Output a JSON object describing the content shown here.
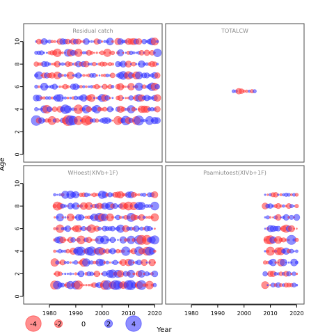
{
  "chart_data": {
    "type": "scatter",
    "subtype": "bubble residual plot",
    "xlabel": "Year",
    "ylabel": "Age",
    "xlim": [
      1971,
      2022
    ],
    "ylim": [
      -0.5,
      11.4
    ],
    "x_ticks": [
      1980,
      1990,
      2000,
      2010,
      2020
    ],
    "y_ticks": [
      0,
      2,
      4,
      6,
      8,
      10
    ],
    "colors": {
      "positive": "#3333ff",
      "negative": "#ff3333",
      "fill_opacity": 0.55
    },
    "legend": {
      "placement": "bottom-left",
      "entries": [
        {
          "label": "-4",
          "value": -4
        },
        {
          "label": "-2",
          "value": -2
        },
        {
          "label": "0",
          "value": 0
        },
        {
          "label": "2",
          "value": 2
        },
        {
          "label": "4",
          "value": 4
        }
      ]
    },
    "panels": [
      {
        "title": "Residual catch",
        "rows": [
          {
            "age": 3,
            "years": [
              1975,
              2004
            ],
            "amp": 2.8
          },
          {
            "age": 4,
            "years": [
              1975,
              2004
            ],
            "amp": 2.3
          },
          {
            "age": 5,
            "years": [
              1975,
              2004
            ],
            "amp": 2.0
          },
          {
            "age": 6,
            "years": [
              1975,
              2004
            ],
            "amp": 1.8
          },
          {
            "age": 7,
            "years": [
              1975,
              2004
            ],
            "amp": 2.0
          },
          {
            "age": 8,
            "years": [
              1975,
              2004
            ],
            "amp": 1.6
          },
          {
            "age": 9,
            "years": [
              1975,
              2004
            ],
            "amp": 2.0
          },
          {
            "age": 10,
            "years": [
              1975,
              2004
            ],
            "amp": 1.7
          },
          {
            "age": 3,
            "years": [
              2006,
              2021
            ],
            "amp": 2.5
          },
          {
            "age": 4,
            "years": [
              2006,
              2021
            ],
            "amp": 2.3
          },
          {
            "age": 5,
            "years": [
              2006,
              2021
            ],
            "amp": 1.8
          },
          {
            "age": 6,
            "years": [
              2006,
              2021
            ],
            "amp": 2.0
          },
          {
            "age": 7,
            "years": [
              2006,
              2021
            ],
            "amp": 2.0
          },
          {
            "age": 8,
            "years": [
              2006,
              2021
            ],
            "amp": 1.7
          },
          {
            "age": 9,
            "years": [
              2006,
              2021
            ],
            "amp": 2.0
          },
          {
            "age": 10,
            "years": [
              2006,
              2021
            ],
            "amp": 1.8
          }
        ]
      },
      {
        "title": "TOTALCW",
        "rows": [
          {
            "age": 5.6,
            "years": [
              1996,
              2004
            ],
            "amp": 1.8
          }
        ]
      },
      {
        "title": "WHoest(XIVb+1F)",
        "rows": [
          {
            "age": 1,
            "years": [
              1982,
              2020
            ],
            "amp": 2.4
          },
          {
            "age": 2,
            "years": [
              1982,
              2020
            ],
            "amp": 2.0
          },
          {
            "age": 3,
            "years": [
              1982,
              2020
            ],
            "amp": 2.0
          },
          {
            "age": 4,
            "years": [
              1982,
              2020
            ],
            "amp": 2.4
          },
          {
            "age": 5,
            "years": [
              1982,
              2020
            ],
            "amp": 2.4
          },
          {
            "age": 6,
            "years": [
              1982,
              2020
            ],
            "amp": 2.2
          },
          {
            "age": 7,
            "years": [
              1982,
              2020
            ],
            "amp": 2.2
          },
          {
            "age": 8,
            "years": [
              1982,
              2020
            ],
            "amp": 2.2
          },
          {
            "age": 9,
            "years": [
              1982,
              2020
            ],
            "amp": 2.0
          }
        ]
      },
      {
        "title": "Paamiutoest(XIVb+1F)",
        "rows": [
          {
            "age": 1,
            "years": [
              2008,
              2020
            ],
            "amp": 1.8
          },
          {
            "age": 2,
            "years": [
              2008,
              2020
            ],
            "amp": 1.4
          },
          {
            "age": 3,
            "years": [
              2008,
              2020
            ],
            "amp": 2.0
          },
          {
            "age": 4,
            "years": [
              2008,
              2020
            ],
            "amp": 2.6
          },
          {
            "age": 5,
            "years": [
              2008,
              2020
            ],
            "amp": 2.4
          },
          {
            "age": 6,
            "years": [
              2008,
              2020
            ],
            "amp": 2.2
          },
          {
            "age": 7,
            "years": [
              2008,
              2020
            ],
            "amp": 1.8
          },
          {
            "age": 8,
            "years": [
              2008,
              2020
            ],
            "amp": 1.6
          },
          {
            "age": 9,
            "years": [
              2008,
              2020
            ],
            "amp": 1.2
          }
        ]
      }
    ]
  }
}
